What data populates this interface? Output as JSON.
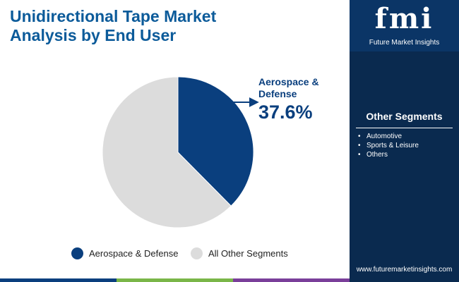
{
  "header": {
    "title_line1": "Unidirectional Tape Market",
    "title_line2": "Analysis by End User"
  },
  "chart_data": {
    "type": "pie",
    "title": "Unidirectional Tape Market Analysis by End User",
    "slices": [
      {
        "label": "Aerospace & Defense",
        "value": 37.6,
        "color": "#0a3f7e"
      },
      {
        "label": "All Other Segments",
        "value": 62.4,
        "color": "#dcdcdc"
      }
    ],
    "annotations": [
      {
        "slice": "Aerospace & Defense",
        "label_line1": "Aerospace &",
        "label_line2": "Defense",
        "value_text": "37.6%"
      }
    ],
    "legend": {
      "position": "bottom",
      "items": [
        "Aerospace & Defense",
        "All Other Segments"
      ]
    }
  },
  "sidebar": {
    "logo_mark": "fmi",
    "logo_text": "Future Market Insights",
    "segments_title": "Other Segments",
    "segments": [
      "Automotive",
      "Sports & Leisure",
      "Others"
    ],
    "url": "www.futuremarketinsights.com"
  },
  "colors": {
    "title": "#0c5b9a",
    "sidebar_bg": "#0a2a4f",
    "logo_bg": "#0b3566",
    "bottom_bar": [
      "#0a3f7e",
      "#7ab648",
      "#e8702a",
      "#7a3f9a"
    ]
  }
}
